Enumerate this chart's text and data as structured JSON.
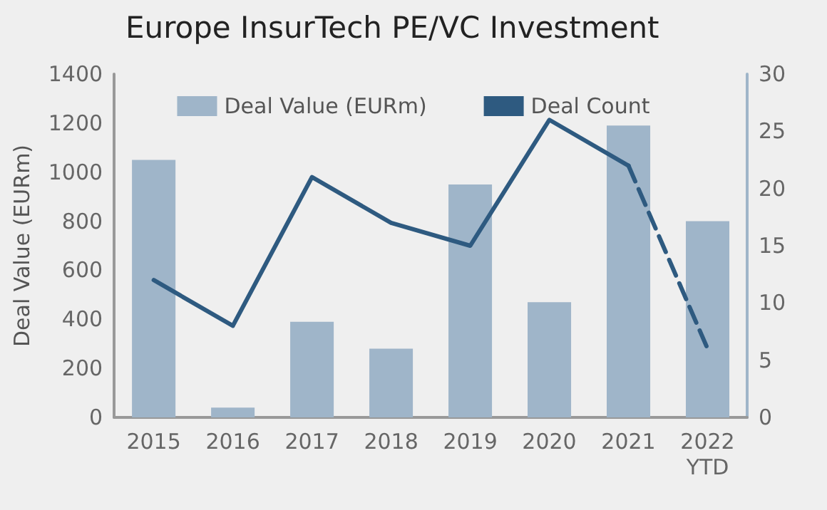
{
  "chart_data": {
    "type": "bar",
    "title": "Europe InsurTech PE/VC Investment",
    "ylabel": "Deal Value (EURm)",
    "categories": [
      "2015",
      "2016",
      "2017",
      "2018",
      "2019",
      "2020",
      "2021",
      "2022\nYTD"
    ],
    "series": [
      {
        "name": "Deal Value (EURm)",
        "color": "#9fb5c9",
        "values": [
          1050,
          40,
          390,
          280,
          950,
          470,
          1190,
          800
        ]
      },
      {
        "name": "Deal Count",
        "type": "line",
        "axis": "y2",
        "color": "#2e5a80",
        "line_style": "solid",
        "values": [
          12,
          8,
          21,
          17,
          15,
          26,
          22,
          null
        ]
      },
      {
        "type": "line",
        "axis": "y2",
        "color": "#2e5a80",
        "line_style": "dashed",
        "values": [
          null,
          null,
          null,
          null,
          null,
          null,
          22,
          6
        ]
      }
    ],
    "ylim": [
      0,
      1400
    ],
    "yticks": [
      0,
      200,
      400,
      600,
      800,
      1000,
      1200,
      1400
    ],
    "y2lim": [
      0,
      30
    ],
    "y2ticks": [
      0,
      5,
      10,
      15,
      20,
      25,
      30
    ],
    "marker": "none",
    "grid": false,
    "legend": "top"
  }
}
